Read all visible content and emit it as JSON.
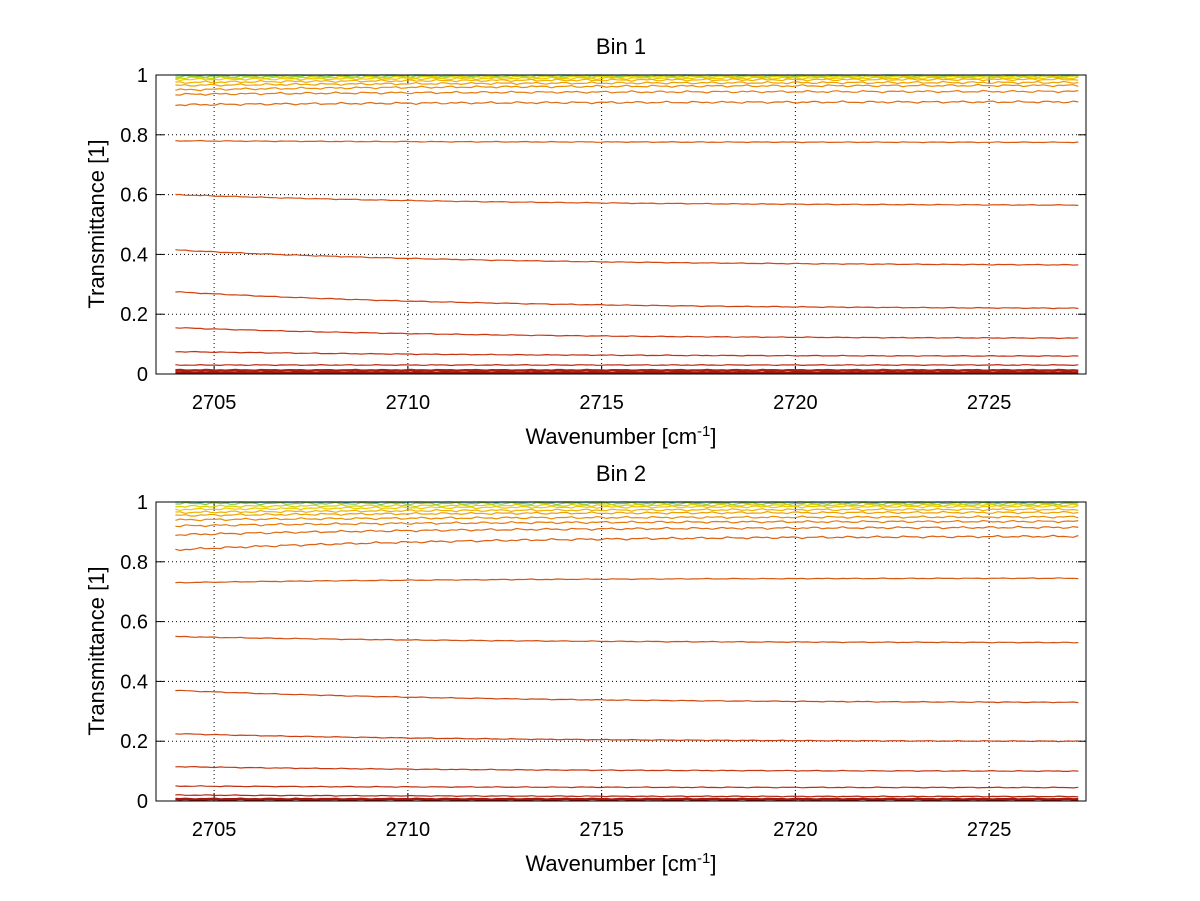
{
  "chart_data": [
    {
      "type": "line",
      "title": "Bin 1",
      "xlabel": "Wavenumber [cm",
      "xlabel_sup": "-1",
      "xlabel_end": "]",
      "ylabel": "Transmittance [1]",
      "xlim": [
        2703.5,
        2727.5
      ],
      "ylim": [
        0,
        1
      ],
      "xticks": [
        "2705",
        "2710",
        "2715",
        "2720",
        "2725"
      ],
      "yticks": [
        "0",
        "0.2",
        "0.4",
        "0.6",
        "0.8",
        "1"
      ],
      "grid": true,
      "x_range": [
        2704.0,
        2727.3
      ],
      "series": [
        {
          "start": 1.0,
          "end": 1.0,
          "color": "#1eb4b4"
        },
        {
          "start": 0.995,
          "end": 0.996,
          "color": "#7ccd3c"
        },
        {
          "start": 0.99,
          "end": 0.995,
          "color": "#d7d200"
        },
        {
          "start": 0.985,
          "end": 0.99,
          "color": "#f0c800"
        },
        {
          "start": 0.975,
          "end": 0.985,
          "color": "#f0b000"
        },
        {
          "start": 0.965,
          "end": 0.975,
          "color": "#eea000"
        },
        {
          "start": 0.95,
          "end": 0.965,
          "color": "#ea8c00"
        },
        {
          "start": 0.935,
          "end": 0.945,
          "color": "#e67a10"
        },
        {
          "start": 0.9,
          "end": 0.91,
          "color": "#e06a10"
        },
        {
          "start": 0.78,
          "end": 0.775,
          "color": "#dc5a10"
        },
        {
          "start": 0.6,
          "end": 0.565,
          "color": "#d85010"
        },
        {
          "start": 0.415,
          "end": 0.365,
          "color": "#d44810"
        },
        {
          "start": 0.275,
          "end": 0.22,
          "color": "#d04010"
        },
        {
          "start": 0.155,
          "end": 0.12,
          "color": "#cc3810"
        },
        {
          "start": 0.075,
          "end": 0.06,
          "color": "#c43010"
        },
        {
          "start": 0.03,
          "end": 0.03,
          "color": "#bc2810"
        },
        {
          "start": 0.012,
          "end": 0.012,
          "color": "#b02010"
        },
        {
          "start": 0.004,
          "end": 0.004,
          "color": "#a01810"
        }
      ]
    },
    {
      "type": "line",
      "title": "Bin 2",
      "xlabel": "Wavenumber [cm",
      "xlabel_sup": "-1",
      "xlabel_end": "]",
      "ylabel": "Transmittance [1]",
      "xlim": [
        2703.5,
        2727.5
      ],
      "ylim": [
        0,
        1
      ],
      "xticks": [
        "2705",
        "2710",
        "2715",
        "2720",
        "2725"
      ],
      "yticks": [
        "0",
        "0.2",
        "0.4",
        "0.6",
        "0.8",
        "1"
      ],
      "grid": true,
      "x_range": [
        2704.0,
        2727.3
      ],
      "series": [
        {
          "start": 1.0,
          "end": 1.0,
          "color": "#1eb4b4"
        },
        {
          "start": 0.995,
          "end": 0.995,
          "color": "#7ccd3c"
        },
        {
          "start": 0.985,
          "end": 0.99,
          "color": "#d7d200"
        },
        {
          "start": 0.975,
          "end": 0.985,
          "color": "#f0c800"
        },
        {
          "start": 0.965,
          "end": 0.975,
          "color": "#f0b000"
        },
        {
          "start": 0.955,
          "end": 0.965,
          "color": "#eea000"
        },
        {
          "start": 0.94,
          "end": 0.95,
          "color": "#ea8c00"
        },
        {
          "start": 0.92,
          "end": 0.935,
          "color": "#e67a10"
        },
        {
          "start": 0.89,
          "end": 0.915,
          "color": "#e06a10"
        },
        {
          "start": 0.84,
          "end": 0.885,
          "color": "#dc6010"
        },
        {
          "start": 0.73,
          "end": 0.745,
          "color": "#d85810"
        },
        {
          "start": 0.55,
          "end": 0.53,
          "color": "#d45010"
        },
        {
          "start": 0.37,
          "end": 0.33,
          "color": "#d04810"
        },
        {
          "start": 0.225,
          "end": 0.2,
          "color": "#cc4010"
        },
        {
          "start": 0.115,
          "end": 0.1,
          "color": "#c83810"
        },
        {
          "start": 0.05,
          "end": 0.045,
          "color": "#c03010"
        },
        {
          "start": 0.02,
          "end": 0.015,
          "color": "#b42810"
        },
        {
          "start": 0.006,
          "end": 0.006,
          "color": "#a41810"
        }
      ]
    }
  ]
}
